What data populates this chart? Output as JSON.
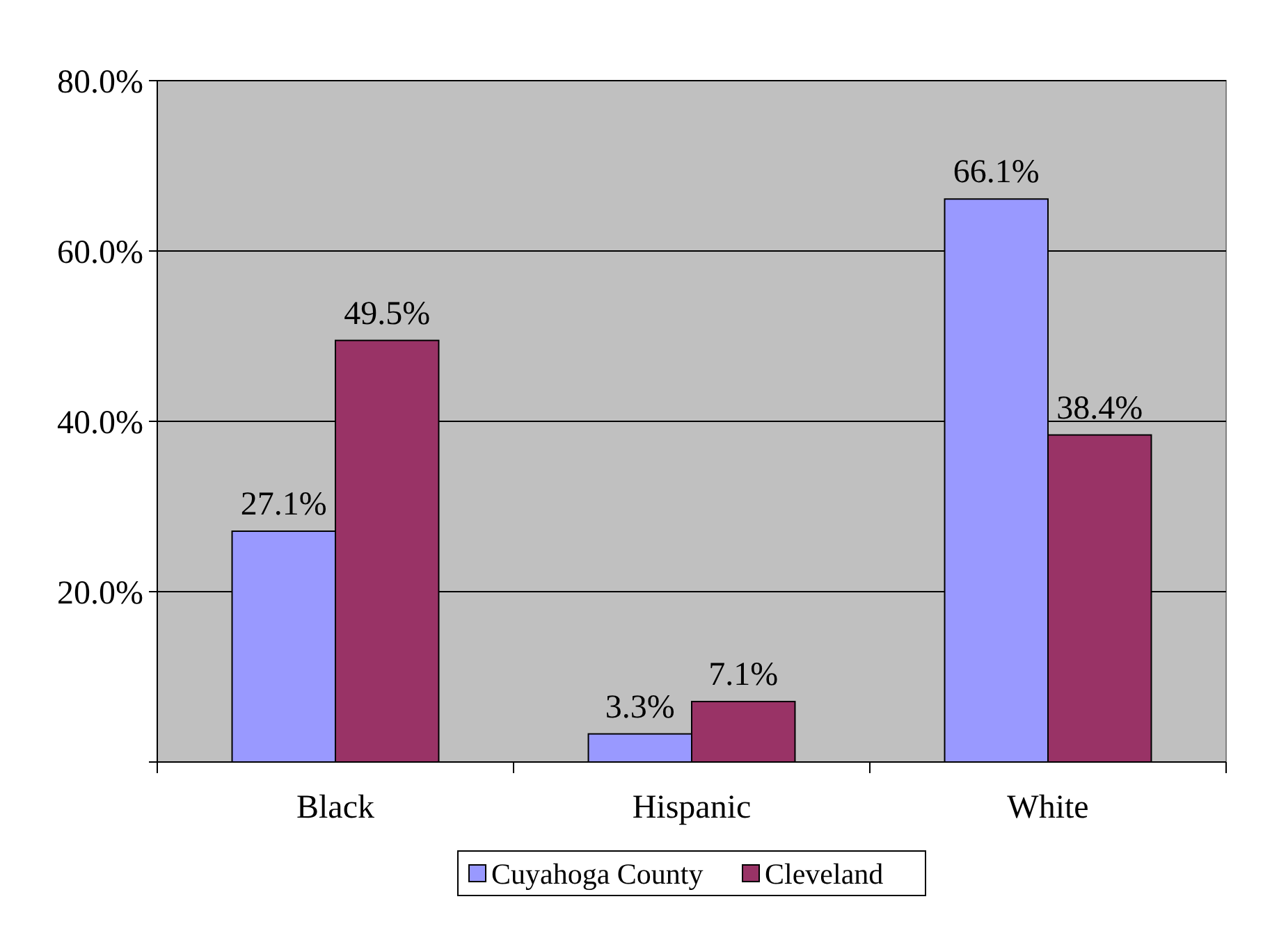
{
  "chart_data": {
    "type": "bar",
    "categories": [
      "Black",
      "Hispanic",
      "White"
    ],
    "series": [
      {
        "name": "Cuyahoga County",
        "color": "#9999ff",
        "values": [
          27.1,
          3.3,
          66.1
        ],
        "value_labels": [
          "27.1%",
          "3.3%",
          "66.1%"
        ]
      },
      {
        "name": "Cleveland",
        "color": "#993366",
        "values": [
          49.5,
          7.1,
          38.4
        ],
        "value_labels": [
          "49.5%",
          "7.1%",
          "38.4%"
        ]
      }
    ],
    "ylim": [
      0,
      80
    ],
    "yticks": [
      {
        "value": 0,
        "label": null
      },
      {
        "value": 20,
        "label": "20.0%"
      },
      {
        "value": 40,
        "label": "40.0%"
      },
      {
        "value": 60,
        "label": "60.0%"
      },
      {
        "value": 80,
        "label": "80.0%"
      }
    ],
    "grid": "y",
    "legend": "bottom"
  }
}
